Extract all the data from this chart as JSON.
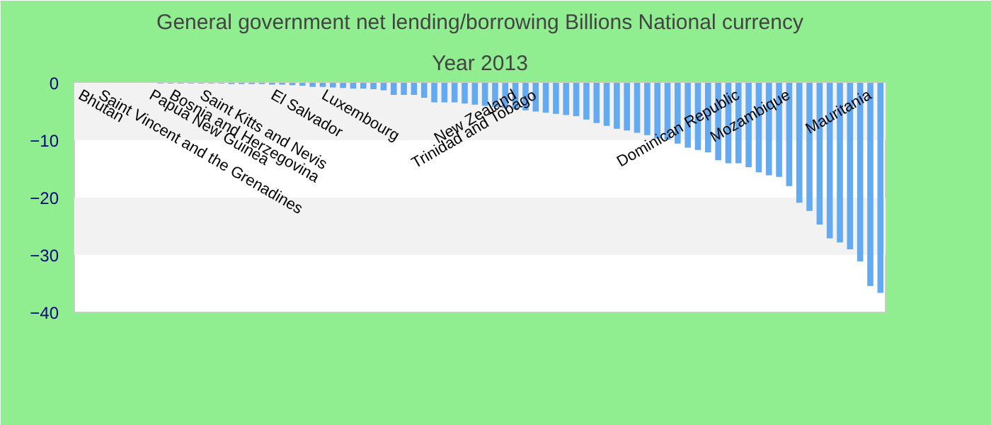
{
  "chart_data": {
    "type": "bar",
    "title": "General government net lending/borrowing Billions National currency",
    "subtitle": "Year 2013",
    "categories": [
      "Bhutan",
      null,
      "Saint Vincent and the Grenadines",
      null,
      null,
      null,
      null,
      "Papua New Guinea",
      null,
      "Bosnia and Herzegovina",
      null,
      null,
      "Saint Kitts and Nevis",
      null,
      null,
      null,
      null,
      null,
      null,
      "El Salvador",
      null,
      null,
      null,
      null,
      "Luxembourg",
      null,
      null,
      null,
      null,
      null,
      null,
      null,
      null,
      null,
      null,
      null,
      null,
      null,
      null,
      null,
      null,
      null,
      null,
      "New Zealand",
      null,
      "Trinidad and Tobago",
      null,
      null,
      null,
      null,
      null,
      null,
      null,
      null,
      null,
      null,
      null,
      null,
      null,
      null,
      null,
      null,
      null,
      null,
      null,
      "Dominican Republic",
      null,
      null,
      null,
      null,
      "Mozambique",
      null,
      null,
      null,
      null,
      null,
      null,
      null,
      "Mauritania",
      null
    ],
    "series": [
      {
        "color": "#64aaf0",
        "values": [
          0,
          0,
          0,
          0,
          0,
          0,
          0,
          0,
          -0.1,
          -0.1,
          -0.1,
          -0.1,
          -0.1,
          -0.1,
          -0.1,
          -0.2,
          -0.2,
          -0.2,
          -0.2,
          -0.3,
          -0.3,
          -0.4,
          -0.5,
          -0.7,
          -0.7,
          -0.8,
          -0.9,
          -1,
          -1,
          -1.1,
          -1.3,
          -2.1,
          -2.1,
          -2.1,
          -2.6,
          -3.4,
          -3.4,
          -3.4,
          -3.6,
          -3.8,
          -4,
          -4.2,
          -4.4,
          -4.6,
          -4.8,
          -5,
          -5.2,
          -5.4,
          -5.6,
          -5.8,
          -6.4,
          -7,
          -7.5,
          -8,
          -8.3,
          -8.7,
          -9.1,
          -9.7,
          -9.9,
          -10.6,
          -11.3,
          -11.7,
          -12.1,
          -13.5,
          -14,
          -14,
          -14.7,
          -15.6,
          -16.1,
          -16.4,
          -18,
          -20.9,
          -22.3,
          -24.7,
          -27.1,
          -27.8,
          -29,
          -31.1,
          -35.4,
          -36.6
        ]
      }
    ],
    "ylim": [
      -40,
      0
    ],
    "yticks": [
      -40,
      -30,
      -20,
      -10,
      0
    ]
  }
}
